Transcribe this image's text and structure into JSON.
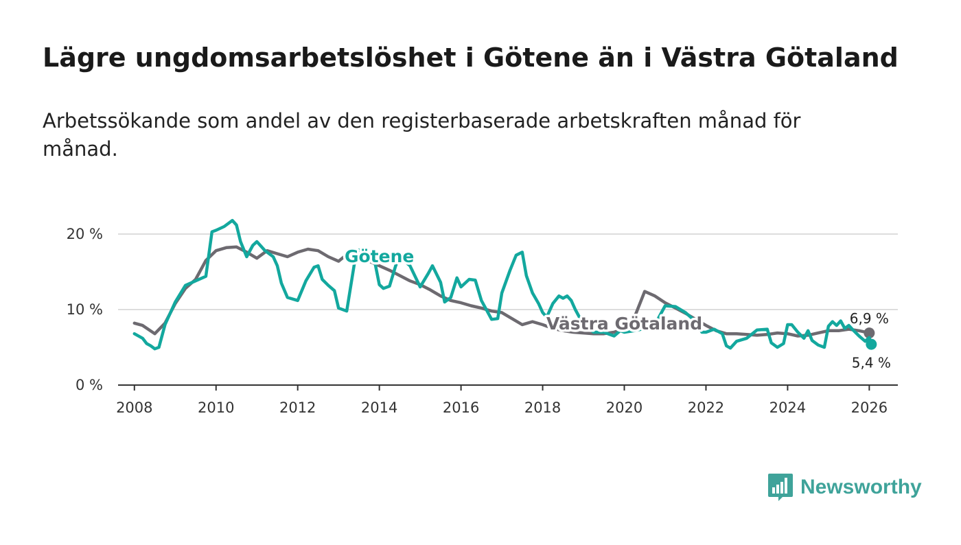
{
  "title": "Lägre ungdomsarbetslöshet i Götene än i Västra Götaland",
  "subtitle": "Arbetssökande som andel av den registerbaserade arbetskraften månad för månad.",
  "logo_text": "Newsworthy",
  "colors": {
    "gotene": "#13a89e",
    "vg": "#6d6a70",
    "grid": "#dddddd",
    "axis": "#333333"
  },
  "chart_data": {
    "type": "line",
    "title": "Lägre ungdomsarbetslöshet i Götene än i Västra Götaland",
    "xlabel": "",
    "ylabel": "",
    "xlim": [
      2007.6,
      2026.7
    ],
    "ylim": [
      0,
      20
    ],
    "x_ticks": [
      2008,
      2010,
      2012,
      2014,
      2016,
      2018,
      2020,
      2022,
      2024,
      2026
    ],
    "x_tick_labels": [
      "2008",
      "2010",
      "2012",
      "2014",
      "2016",
      "2018",
      "2020",
      "2022",
      "2024",
      "2026"
    ],
    "y_ticks": [
      0,
      10,
      20
    ],
    "y_tick_labels": [
      "0 %",
      "10 %",
      "20 %"
    ],
    "series": [
      {
        "name": "Västra Götaland",
        "label": "Västra Götaland",
        "label_pos": [
          2020.0,
          8.2
        ],
        "end_label": "6,9 %",
        "points": [
          [
            2008.0,
            8.2
          ],
          [
            2008.2,
            7.9
          ],
          [
            2008.5,
            6.8
          ],
          [
            2008.75,
            8.2
          ],
          [
            2009.0,
            10.8
          ],
          [
            2009.25,
            12.8
          ],
          [
            2009.5,
            14.0
          ],
          [
            2009.75,
            16.5
          ],
          [
            2010.0,
            17.8
          ],
          [
            2010.25,
            18.2
          ],
          [
            2010.5,
            18.3
          ],
          [
            2010.75,
            17.6
          ],
          [
            2011.0,
            16.8
          ],
          [
            2011.25,
            17.8
          ],
          [
            2011.5,
            17.4
          ],
          [
            2011.75,
            17.0
          ],
          [
            2012.0,
            17.6
          ],
          [
            2012.25,
            18.0
          ],
          [
            2012.5,
            17.8
          ],
          [
            2012.75,
            17.0
          ],
          [
            2013.0,
            16.4
          ],
          [
            2013.25,
            17.5
          ],
          [
            2013.5,
            17.0
          ],
          [
            2013.75,
            16.4
          ],
          [
            2014.0,
            15.8
          ],
          [
            2014.25,
            15.2
          ],
          [
            2014.5,
            14.5
          ],
          [
            2014.75,
            13.8
          ],
          [
            2015.0,
            13.3
          ],
          [
            2015.25,
            12.6
          ],
          [
            2015.5,
            11.8
          ],
          [
            2015.75,
            11.2
          ],
          [
            2016.0,
            10.9
          ],
          [
            2016.25,
            10.5
          ],
          [
            2016.5,
            10.2
          ],
          [
            2016.75,
            9.8
          ],
          [
            2017.0,
            9.6
          ],
          [
            2017.25,
            8.8
          ],
          [
            2017.5,
            8.0
          ],
          [
            2017.75,
            8.4
          ],
          [
            2018.0,
            8.0
          ],
          [
            2018.25,
            7.5
          ],
          [
            2018.5,
            7.2
          ],
          [
            2018.75,
            7.0
          ],
          [
            2019.0,
            6.9
          ],
          [
            2019.25,
            6.8
          ],
          [
            2019.5,
            6.8
          ],
          [
            2019.75,
            7.0
          ],
          [
            2020.0,
            7.5
          ],
          [
            2020.25,
            9.0
          ],
          [
            2020.5,
            12.4
          ],
          [
            2020.75,
            11.8
          ],
          [
            2021.0,
            10.9
          ],
          [
            2021.25,
            10.2
          ],
          [
            2021.5,
            9.5
          ],
          [
            2021.75,
            8.7
          ],
          [
            2022.0,
            7.9
          ],
          [
            2022.25,
            7.2
          ],
          [
            2022.5,
            6.8
          ],
          [
            2022.75,
            6.8
          ],
          [
            2023.0,
            6.7
          ],
          [
            2023.25,
            6.6
          ],
          [
            2023.5,
            6.7
          ],
          [
            2023.75,
            6.9
          ],
          [
            2024.0,
            6.8
          ],
          [
            2024.25,
            6.5
          ],
          [
            2024.5,
            6.6
          ],
          [
            2024.75,
            6.9
          ],
          [
            2025.0,
            7.2
          ],
          [
            2025.25,
            7.2
          ],
          [
            2025.5,
            7.4
          ],
          [
            2025.75,
            7.2
          ],
          [
            2026.0,
            6.9
          ]
        ]
      },
      {
        "name": "Götene",
        "label": "Götene",
        "label_pos": [
          2014.0,
          17.1
        ],
        "end_label": "5,4 %",
        "points": [
          [
            2008.0,
            6.8
          ],
          [
            2008.2,
            6.2
          ],
          [
            2008.3,
            5.5
          ],
          [
            2008.4,
            5.2
          ],
          [
            2008.5,
            4.8
          ],
          [
            2008.6,
            5.0
          ],
          [
            2008.75,
            8.0
          ],
          [
            2009.0,
            11.0
          ],
          [
            2009.25,
            13.2
          ],
          [
            2009.5,
            13.8
          ],
          [
            2009.75,
            14.4
          ],
          [
            2009.9,
            20.3
          ],
          [
            2010.0,
            20.5
          ],
          [
            2010.2,
            21.0
          ],
          [
            2010.4,
            21.8
          ],
          [
            2010.5,
            21.2
          ],
          [
            2010.6,
            19.0
          ],
          [
            2010.75,
            17.0
          ],
          [
            2010.9,
            18.5
          ],
          [
            2011.0,
            19.0
          ],
          [
            2011.2,
            17.8
          ],
          [
            2011.4,
            17.0
          ],
          [
            2011.5,
            15.8
          ],
          [
            2011.6,
            13.5
          ],
          [
            2011.75,
            11.6
          ],
          [
            2012.0,
            11.2
          ],
          [
            2012.2,
            13.8
          ],
          [
            2012.4,
            15.6
          ],
          [
            2012.5,
            15.8
          ],
          [
            2012.6,
            14.0
          ],
          [
            2012.75,
            13.2
          ],
          [
            2012.9,
            12.5
          ],
          [
            2013.0,
            10.2
          ],
          [
            2013.2,
            9.8
          ],
          [
            2013.4,
            16.5
          ],
          [
            2013.5,
            17.9
          ],
          [
            2013.6,
            17.6
          ],
          [
            2013.75,
            17.2
          ],
          [
            2013.9,
            16.0
          ],
          [
            2014.0,
            13.3
          ],
          [
            2014.1,
            12.8
          ],
          [
            2014.25,
            13.1
          ],
          [
            2014.4,
            15.8
          ],
          [
            2014.5,
            17.0
          ],
          [
            2014.6,
            16.5
          ],
          [
            2014.75,
            15.8
          ],
          [
            2015.0,
            13.0
          ],
          [
            2015.2,
            14.8
          ],
          [
            2015.3,
            15.8
          ],
          [
            2015.5,
            13.6
          ],
          [
            2015.6,
            11.0
          ],
          [
            2015.75,
            11.6
          ],
          [
            2015.9,
            14.2
          ],
          [
            2016.0,
            13.0
          ],
          [
            2016.2,
            14.0
          ],
          [
            2016.35,
            13.9
          ],
          [
            2016.5,
            11.2
          ],
          [
            2016.6,
            10.2
          ],
          [
            2016.75,
            8.7
          ],
          [
            2016.9,
            8.8
          ],
          [
            2017.0,
            12.2
          ],
          [
            2017.2,
            15.2
          ],
          [
            2017.35,
            17.2
          ],
          [
            2017.5,
            17.6
          ],
          [
            2017.6,
            14.5
          ],
          [
            2017.75,
            12.2
          ],
          [
            2017.9,
            10.8
          ],
          [
            2018.0,
            9.6
          ],
          [
            2018.1,
            9.0
          ],
          [
            2018.25,
            10.8
          ],
          [
            2018.4,
            11.8
          ],
          [
            2018.5,
            11.5
          ],
          [
            2018.6,
            11.8
          ],
          [
            2018.7,
            11.2
          ],
          [
            2018.8,
            10.0
          ],
          [
            2019.0,
            8.0
          ],
          [
            2019.25,
            7.0
          ],
          [
            2019.5,
            7.0
          ],
          [
            2019.75,
            6.5
          ],
          [
            2019.9,
            7.2
          ],
          [
            2020.0,
            7.0
          ],
          [
            2020.25,
            7.2
          ],
          [
            2020.5,
            7.5
          ],
          [
            2020.75,
            8.0
          ],
          [
            2021.0,
            10.5
          ],
          [
            2021.25,
            10.4
          ],
          [
            2021.5,
            9.6
          ],
          [
            2021.75,
            8.4
          ],
          [
            2021.9,
            7.0
          ],
          [
            2022.0,
            7.0
          ],
          [
            2022.2,
            7.4
          ],
          [
            2022.4,
            6.8
          ],
          [
            2022.5,
            5.2
          ],
          [
            2022.6,
            4.9
          ],
          [
            2022.75,
            5.8
          ],
          [
            2023.0,
            6.2
          ],
          [
            2023.25,
            7.3
          ],
          [
            2023.5,
            7.4
          ],
          [
            2023.6,
            5.6
          ],
          [
            2023.75,
            5.0
          ],
          [
            2023.9,
            5.5
          ],
          [
            2024.0,
            8.0
          ],
          [
            2024.1,
            8.0
          ],
          [
            2024.25,
            7.0
          ],
          [
            2024.4,
            6.2
          ],
          [
            2024.5,
            7.2
          ],
          [
            2024.6,
            5.9
          ],
          [
            2024.75,
            5.3
          ],
          [
            2024.9,
            5.0
          ],
          [
            2025.0,
            7.8
          ],
          [
            2025.1,
            8.4
          ],
          [
            2025.2,
            7.9
          ],
          [
            2025.3,
            8.5
          ],
          [
            2025.4,
            7.5
          ],
          [
            2025.5,
            7.9
          ],
          [
            2025.6,
            7.3
          ],
          [
            2025.75,
            6.5
          ],
          [
            2025.9,
            5.8
          ],
          [
            2026.0,
            6.3
          ],
          [
            2026.05,
            5.4
          ]
        ]
      }
    ]
  }
}
